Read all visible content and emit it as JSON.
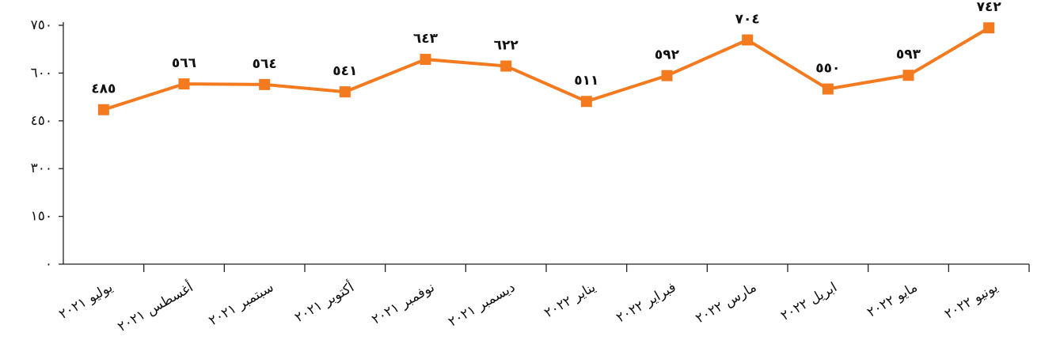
{
  "chart_data": {
    "type": "line",
    "categories": [
      "يوليو ٢٠٢١",
      "أغسطس ٢٠٢١",
      "سبتمبر ٢٠٢١",
      "أكتوبر ٢٠٢١",
      "نوفمبر ٢٠٢١",
      "ديسمبر ٢٠٢١",
      "يناير ٢٠٢٢",
      "فبراير ٢٠٢٢",
      "مارس ٢٠٢٢",
      "ابريل ٢٠٢٢",
      "مايو ٢٠٢٢",
      "يونيو ٢٠٢٢"
    ],
    "values": [
      485,
      566,
      564,
      541,
      643,
      622,
      511,
      592,
      704,
      550,
      593,
      742
    ],
    "value_labels": [
      "٤٨٥",
      "٥٦٦",
      "٥٦٤",
      "٥٤١",
      "٦٤٣",
      "٦٢٢",
      "٥١١",
      "٥٩٢",
      "٧٠٤",
      "٥٥٠",
      "٥٩٣",
      "٧٤٢"
    ],
    "color": "#f47a20",
    "ylim": [
      0,
      750
    ],
    "yticks": [
      {
        "value": 0,
        "label": "٠"
      },
      {
        "value": 150,
        "label": "١٥٠"
      },
      {
        "value": 300,
        "label": "٣٠٠"
      },
      {
        "value": 450,
        "label": "٤٥٠"
      },
      {
        "value": 600,
        "label": "٦٠٠"
      },
      {
        "value": 750,
        "label": "٧٥٠"
      }
    ],
    "grid": false
  }
}
